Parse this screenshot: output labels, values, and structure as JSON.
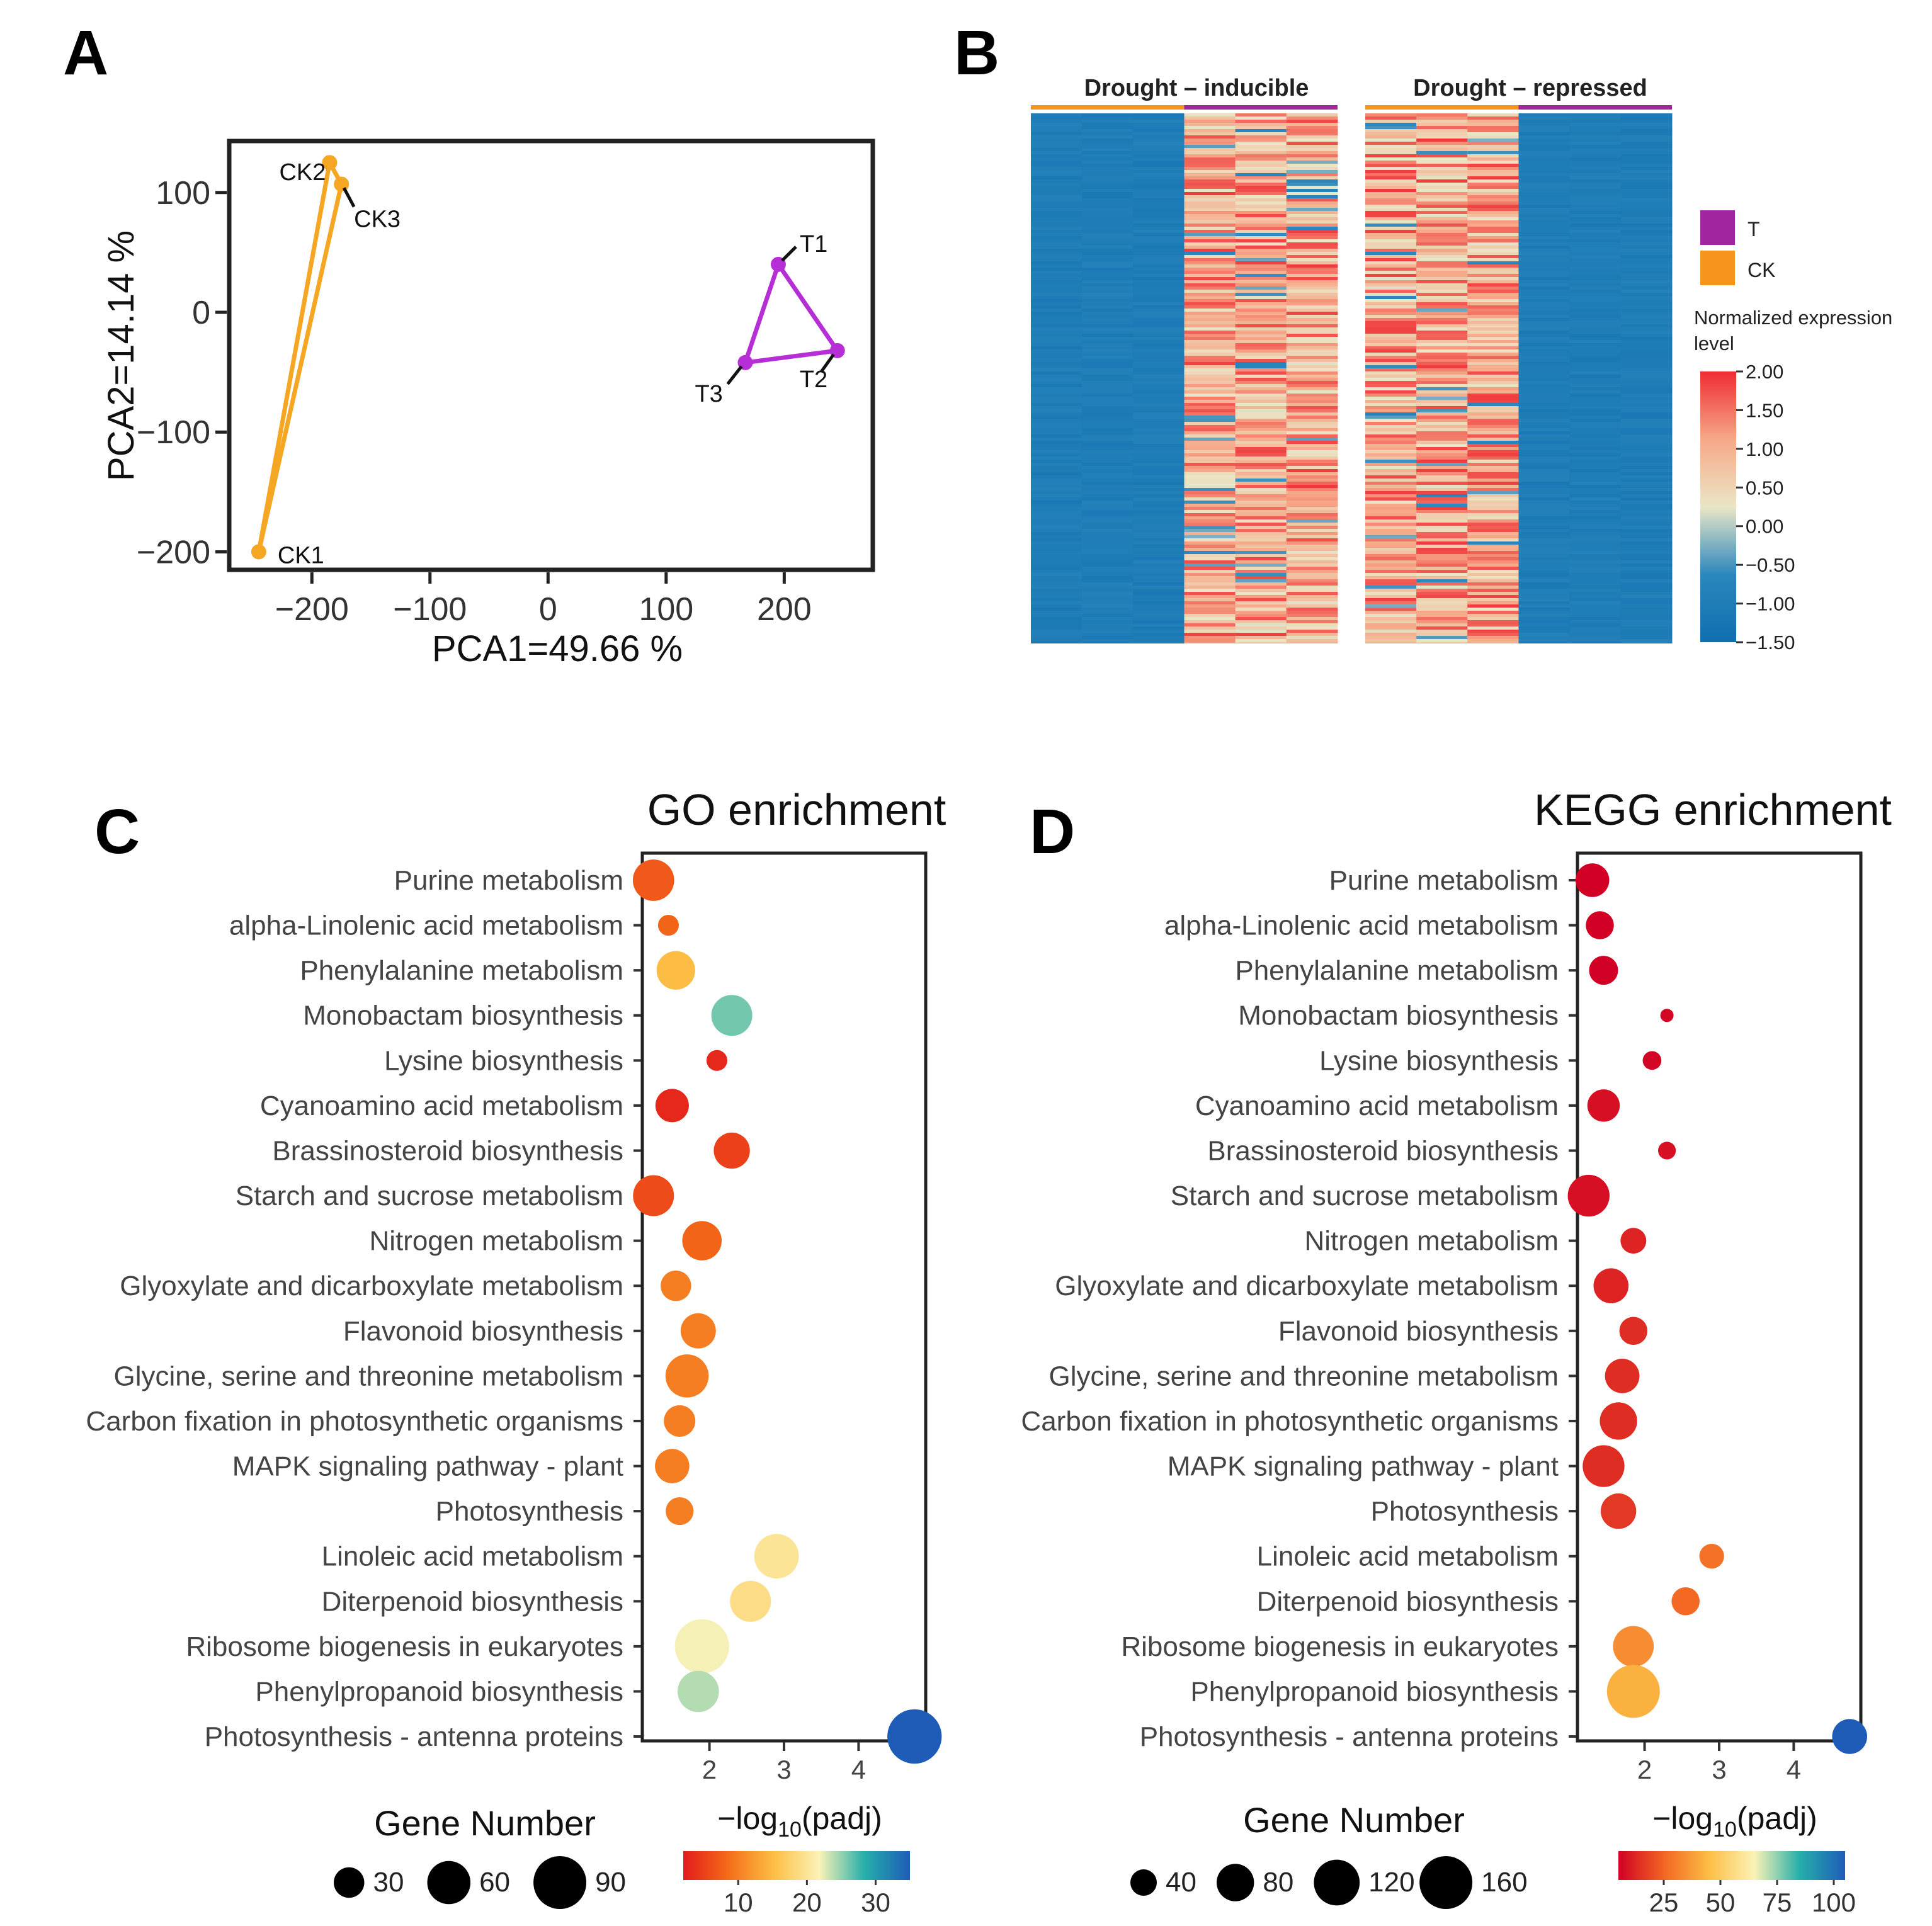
{
  "figure": {
    "panel_labels": [
      "A",
      "B",
      "C",
      "D"
    ]
  },
  "chart_data": [
    {
      "id": "A",
      "type": "scatter",
      "xlabel": "PCA1=49.66 %",
      "ylabel": "PCA2=14.14 %",
      "xlim": [
        -270,
        275
      ],
      "ylim": [
        -215,
        143
      ],
      "xticks": [
        -200,
        -100,
        0,
        100,
        200
      ],
      "xtick_labels": [
        "−200",
        "−100",
        "0",
        "100",
        "200"
      ],
      "yticks": [
        100,
        0,
        -100,
        -200
      ],
      "ytick_labels": [
        "100",
        "0",
        "−100",
        "−200"
      ],
      "series": [
        {
          "name": "CK",
          "color": "#F5A623",
          "points": [
            {
              "label": "CK1",
              "x": -245,
              "y": -200
            },
            {
              "label": "CK2",
              "x": -185,
              "y": 125
            },
            {
              "label": "CK3",
              "x": -175,
              "y": 107
            }
          ]
        },
        {
          "name": "T",
          "color": "#B62FD6",
          "points": [
            {
              "label": "T1",
              "x": 195,
              "y": 40
            },
            {
              "label": "T2",
              "x": 245,
              "y": -32
            },
            {
              "label": "T3",
              "x": 167,
              "y": -42
            }
          ]
        }
      ]
    },
    {
      "id": "B",
      "type": "heatmap",
      "groups": [
        {
          "title": "Drought – inducible",
          "ck_level": -1.05,
          "t_level": 1.0
        },
        {
          "title": "Drought – repressed",
          "ck_level": 1.0,
          "t_level": -1.05
        }
      ],
      "legend": {
        "entries": [
          {
            "label": "T",
            "color": "#A0259E"
          },
          {
            "label": "CK",
            "color": "#F7941D"
          }
        ],
        "title": "Normalized expression level",
        "range": [
          -1.5,
          2.0
        ],
        "ticks": [
          "2.00",
          "1.50",
          "1.00",
          "0.50",
          "0.00",
          "−0.50",
          "−1.00",
          "−1.50"
        ],
        "colors": [
          "#0F6FAF",
          "#2B87BD",
          "#EAE6C6",
          "#F6A888",
          "#EF2C33"
        ]
      }
    },
    {
      "id": "C",
      "type": "scatter",
      "title": "GO enrichment",
      "xlabel": "−log10(padj)",
      "xlim": [
        1.1,
        4.9
      ],
      "xticks": [
        "2",
        "3",
        "4"
      ],
      "size_legend_title": "Gene Number",
      "size_legend": [
        30,
        60,
        90
      ],
      "size_max": 90,
      "color_range": [
        2,
        35
      ],
      "colorbar_ticks": [
        "10",
        "20",
        "30"
      ],
      "colors": [
        "#E31A1C",
        "#F46D18",
        "#FDBE45",
        "#FBF2B6",
        "#25AFAA",
        "#1F5CB8"
      ],
      "categories": [
        "Purine metabolism",
        "alpha-Linolenic acid metabolism",
        "Phenylalanine metabolism",
        "Monobactam biosynthesis",
        "Lysine biosynthesis",
        "Cyanoamino acid metabolism",
        "Brassinosteroid biosynthesis",
        "Starch and sucrose metabolism",
        "Nitrogen metabolism",
        "Glyoxylate and dicarboxylate metabolism",
        "Flavonoid biosynthesis",
        "Glycine, serine and threonine metabolism",
        "Carbon fixation in photosynthetic organisms",
        "MAPK signaling pathway - plant",
        "Photosynthesis",
        "Linoleic acid metabolism",
        "Diterpenoid biosynthesis",
        "Ribosome biogenesis in eukaryotes",
        "Phenylpropanoid biosynthesis",
        "Photosynthesis - antenna proteins"
      ],
      "x": [
        1.25,
        1.45,
        1.55,
        2.3,
        2.1,
        1.5,
        2.3,
        1.25,
        1.9,
        1.55,
        1.85,
        1.7,
        1.6,
        1.5,
        1.6,
        2.9,
        2.55,
        1.9,
        1.85,
        4.75
      ],
      "gene_number": [
        55,
        14,
        48,
        54,
        14,
        36,
        42,
        54,
        50,
        30,
        40,
        60,
        32,
        38,
        25,
        64,
        54,
        95,
        55,
        95
      ],
      "color_value": [
        7,
        8,
        15,
        26,
        3,
        3,
        5,
        6,
        8,
        10,
        10,
        10,
        10,
        10,
        10,
        20,
        19,
        22,
        24,
        35
      ]
    },
    {
      "id": "D",
      "type": "scatter",
      "title": "KEGG enrichment",
      "xlabel": "−log10(padj)",
      "xlim": [
        1.1,
        4.9
      ],
      "xticks": [
        "2",
        "3",
        "4"
      ],
      "size_legend_title": "Gene Number",
      "size_legend": [
        40,
        80,
        120,
        160
      ],
      "size_max": 160,
      "color_range": [
        5,
        105
      ],
      "colorbar_ticks": [
        "25",
        "50",
        "75",
        "100"
      ],
      "colors": [
        "#D10024",
        "#F26522",
        "#FDBE45",
        "#FBF2B6",
        "#25AFAA",
        "#1F5CB8"
      ],
      "categories": [
        "Purine metabolism",
        "alpha-Linolenic acid metabolism",
        "Phenylalanine metabolism",
        "Monobactam biosynthesis",
        "Lysine biosynthesis",
        "Cyanoamino acid metabolism",
        "Brassinosteroid biosynthesis",
        "Starch and sucrose metabolism",
        "Nitrogen metabolism",
        "Glyoxylate and dicarboxylate metabolism",
        "Flavonoid biosynthesis",
        "Glycine, serine and threonine metabolism",
        "Carbon fixation in photosynthetic organisms",
        "MAPK signaling pathway - plant",
        "Photosynthesis",
        "Linoleic acid metabolism",
        "Diterpenoid biosynthesis",
        "Ribosome biogenesis in eukaryotes",
        "Phenylpropanoid biosynthesis",
        "Photosynthesis - antenna proteins"
      ],
      "x": [
        1.3,
        1.4,
        1.45,
        2.3,
        2.1,
        1.45,
        2.3,
        1.25,
        1.85,
        1.55,
        1.85,
        1.7,
        1.65,
        1.45,
        1.65,
        2.9,
        2.55,
        1.85,
        1.85,
        4.75
      ],
      "gene_number": [
        65,
        45,
        48,
        10,
        20,
        60,
        18,
        100,
        38,
        70,
        45,
        68,
        80,
        100,
        72,
        35,
        45,
        95,
        160,
        70
      ],
      "color_value": [
        4,
        4,
        4,
        6,
        6,
        8,
        8,
        8,
        12,
        12,
        14,
        14,
        14,
        14,
        16,
        28,
        26,
        34,
        42,
        105
      ]
    }
  ]
}
